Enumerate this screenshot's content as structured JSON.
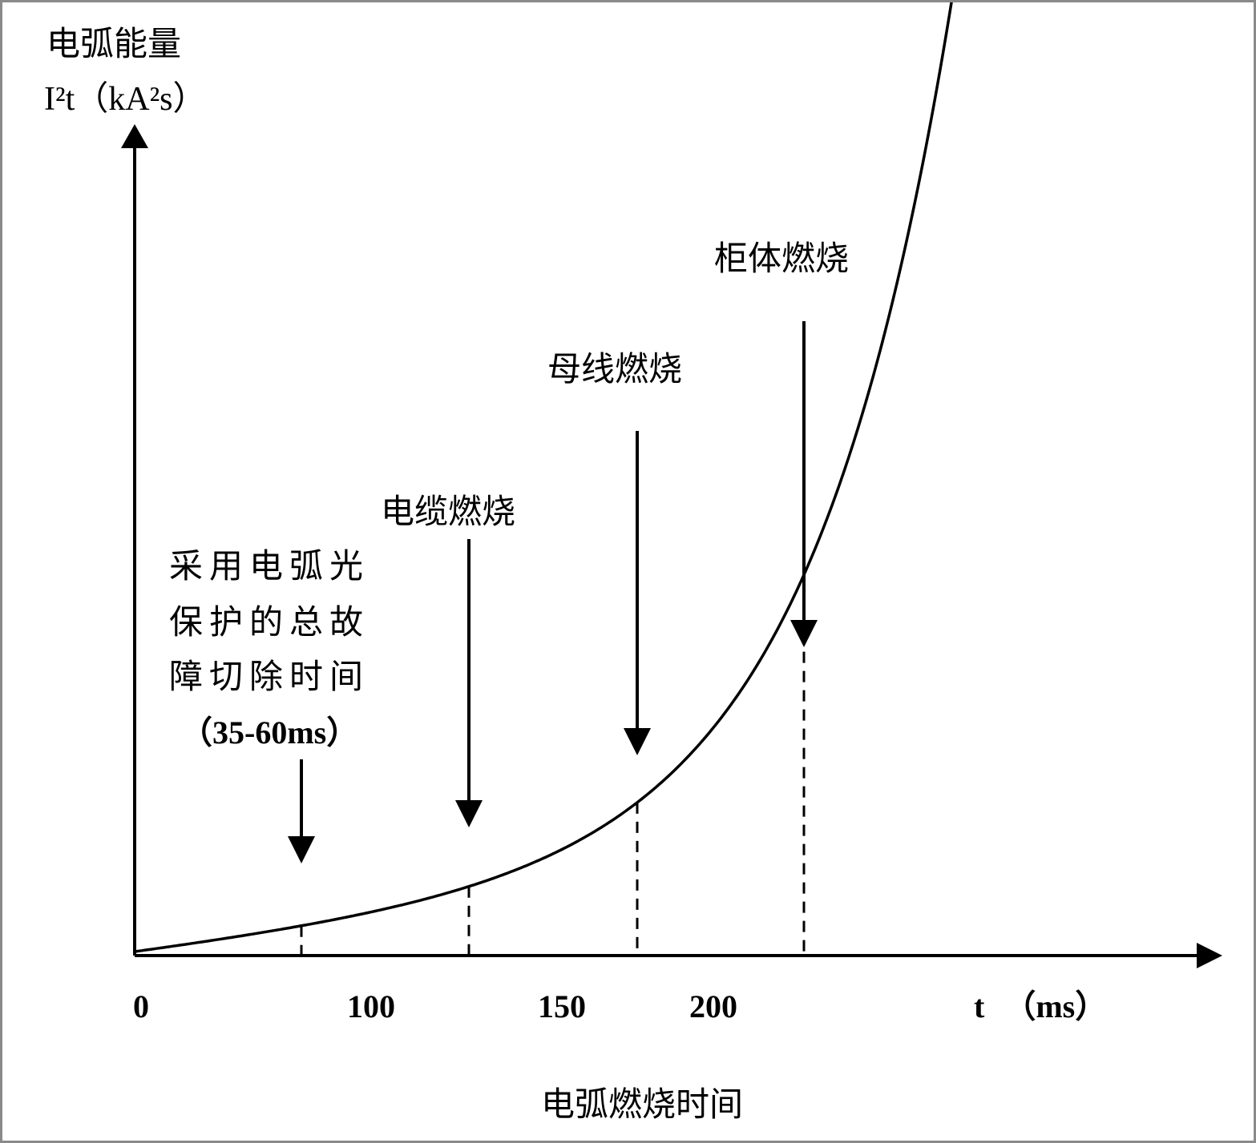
{
  "chart_data": {
    "type": "line",
    "ylabel_line1": "电弧能量",
    "ylabel_line2": "I²t（kA²s）",
    "xlabel": "电弧燃烧时间",
    "x_unit_label": "t （ms）",
    "x_tick_labels": [
      "0",
      "100",
      "150",
      "200"
    ],
    "grid": false,
    "curve_shape": "exponential growth",
    "annotations": [
      {
        "id": "protection",
        "lines": [
          "采用电弧光",
          "保护的总故",
          "障切除时间",
          "（35-60ms）"
        ]
      },
      {
        "id": "cable",
        "lines": [
          "电缆燃烧"
        ]
      },
      {
        "id": "busbar",
        "lines": [
          "母线燃烧"
        ]
      },
      {
        "id": "cabinet",
        "lines": [
          "柜体燃烧"
        ]
      }
    ],
    "colors": {
      "line": "#000000",
      "background": "#ffffff",
      "border": "#8a8a8a"
    }
  }
}
